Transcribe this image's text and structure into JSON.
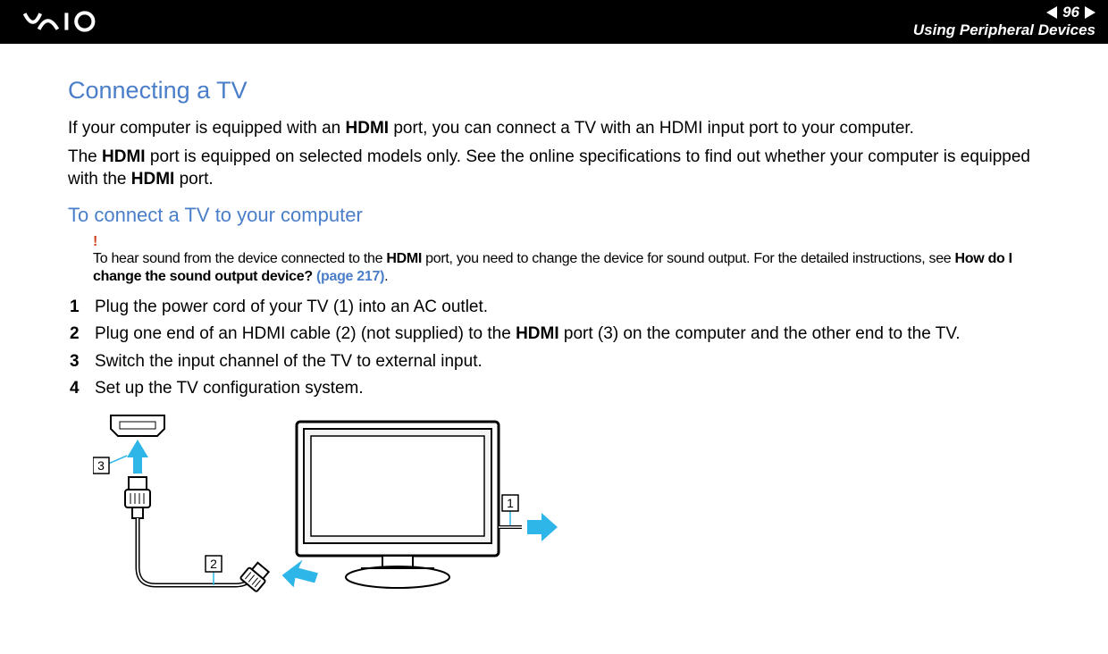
{
  "header": {
    "page_number": "96",
    "section": "Using Peripheral Devices"
  },
  "title": "Connecting a TV",
  "intro_paragraphs": [
    {
      "html": "If your computer is equipped with an <b>HDMI</b> port, you can connect a TV with an HDMI input port to your computer."
    },
    {
      "html": "The <b>HDMI</b> port is equipped on selected models only. See the online specifications to find out whether your computer is equipped with the <b>HDMI</b> port."
    }
  ],
  "subtitle": "To connect a TV to your computer",
  "note": {
    "bang": "!",
    "html": "To hear sound from the device connected to the <b>HDMI</b> port, you need to change the device for sound output. For the detailed instructions, see <b>How do I change the sound output device?</b> <span class='link'>(page 217)</span>."
  },
  "steps": [
    {
      "n": "1",
      "html": "Plug the power cord of your TV (1) into an AC outlet."
    },
    {
      "n": "2",
      "html": "Plug one end of an HDMI cable (2) (not supplied) to the <b>HDMI</b> port (3) on the computer and the other end to the TV."
    },
    {
      "n": "3",
      "html": "Switch the input channel of the TV to external input."
    },
    {
      "n": "4",
      "html": "Set up the TV configuration system."
    }
  ],
  "diagram": {
    "labels": {
      "port": "3",
      "cable": "2",
      "power": "1"
    },
    "arrow_color": "#2fb6e8",
    "callout_color": "#2fb6e8",
    "line_color": "#000000",
    "screen_fill": "#f4f4f4"
  },
  "colors": {
    "heading": "#4a7ec9",
    "bang": "#d04020",
    "link": "#4a7ec9"
  }
}
